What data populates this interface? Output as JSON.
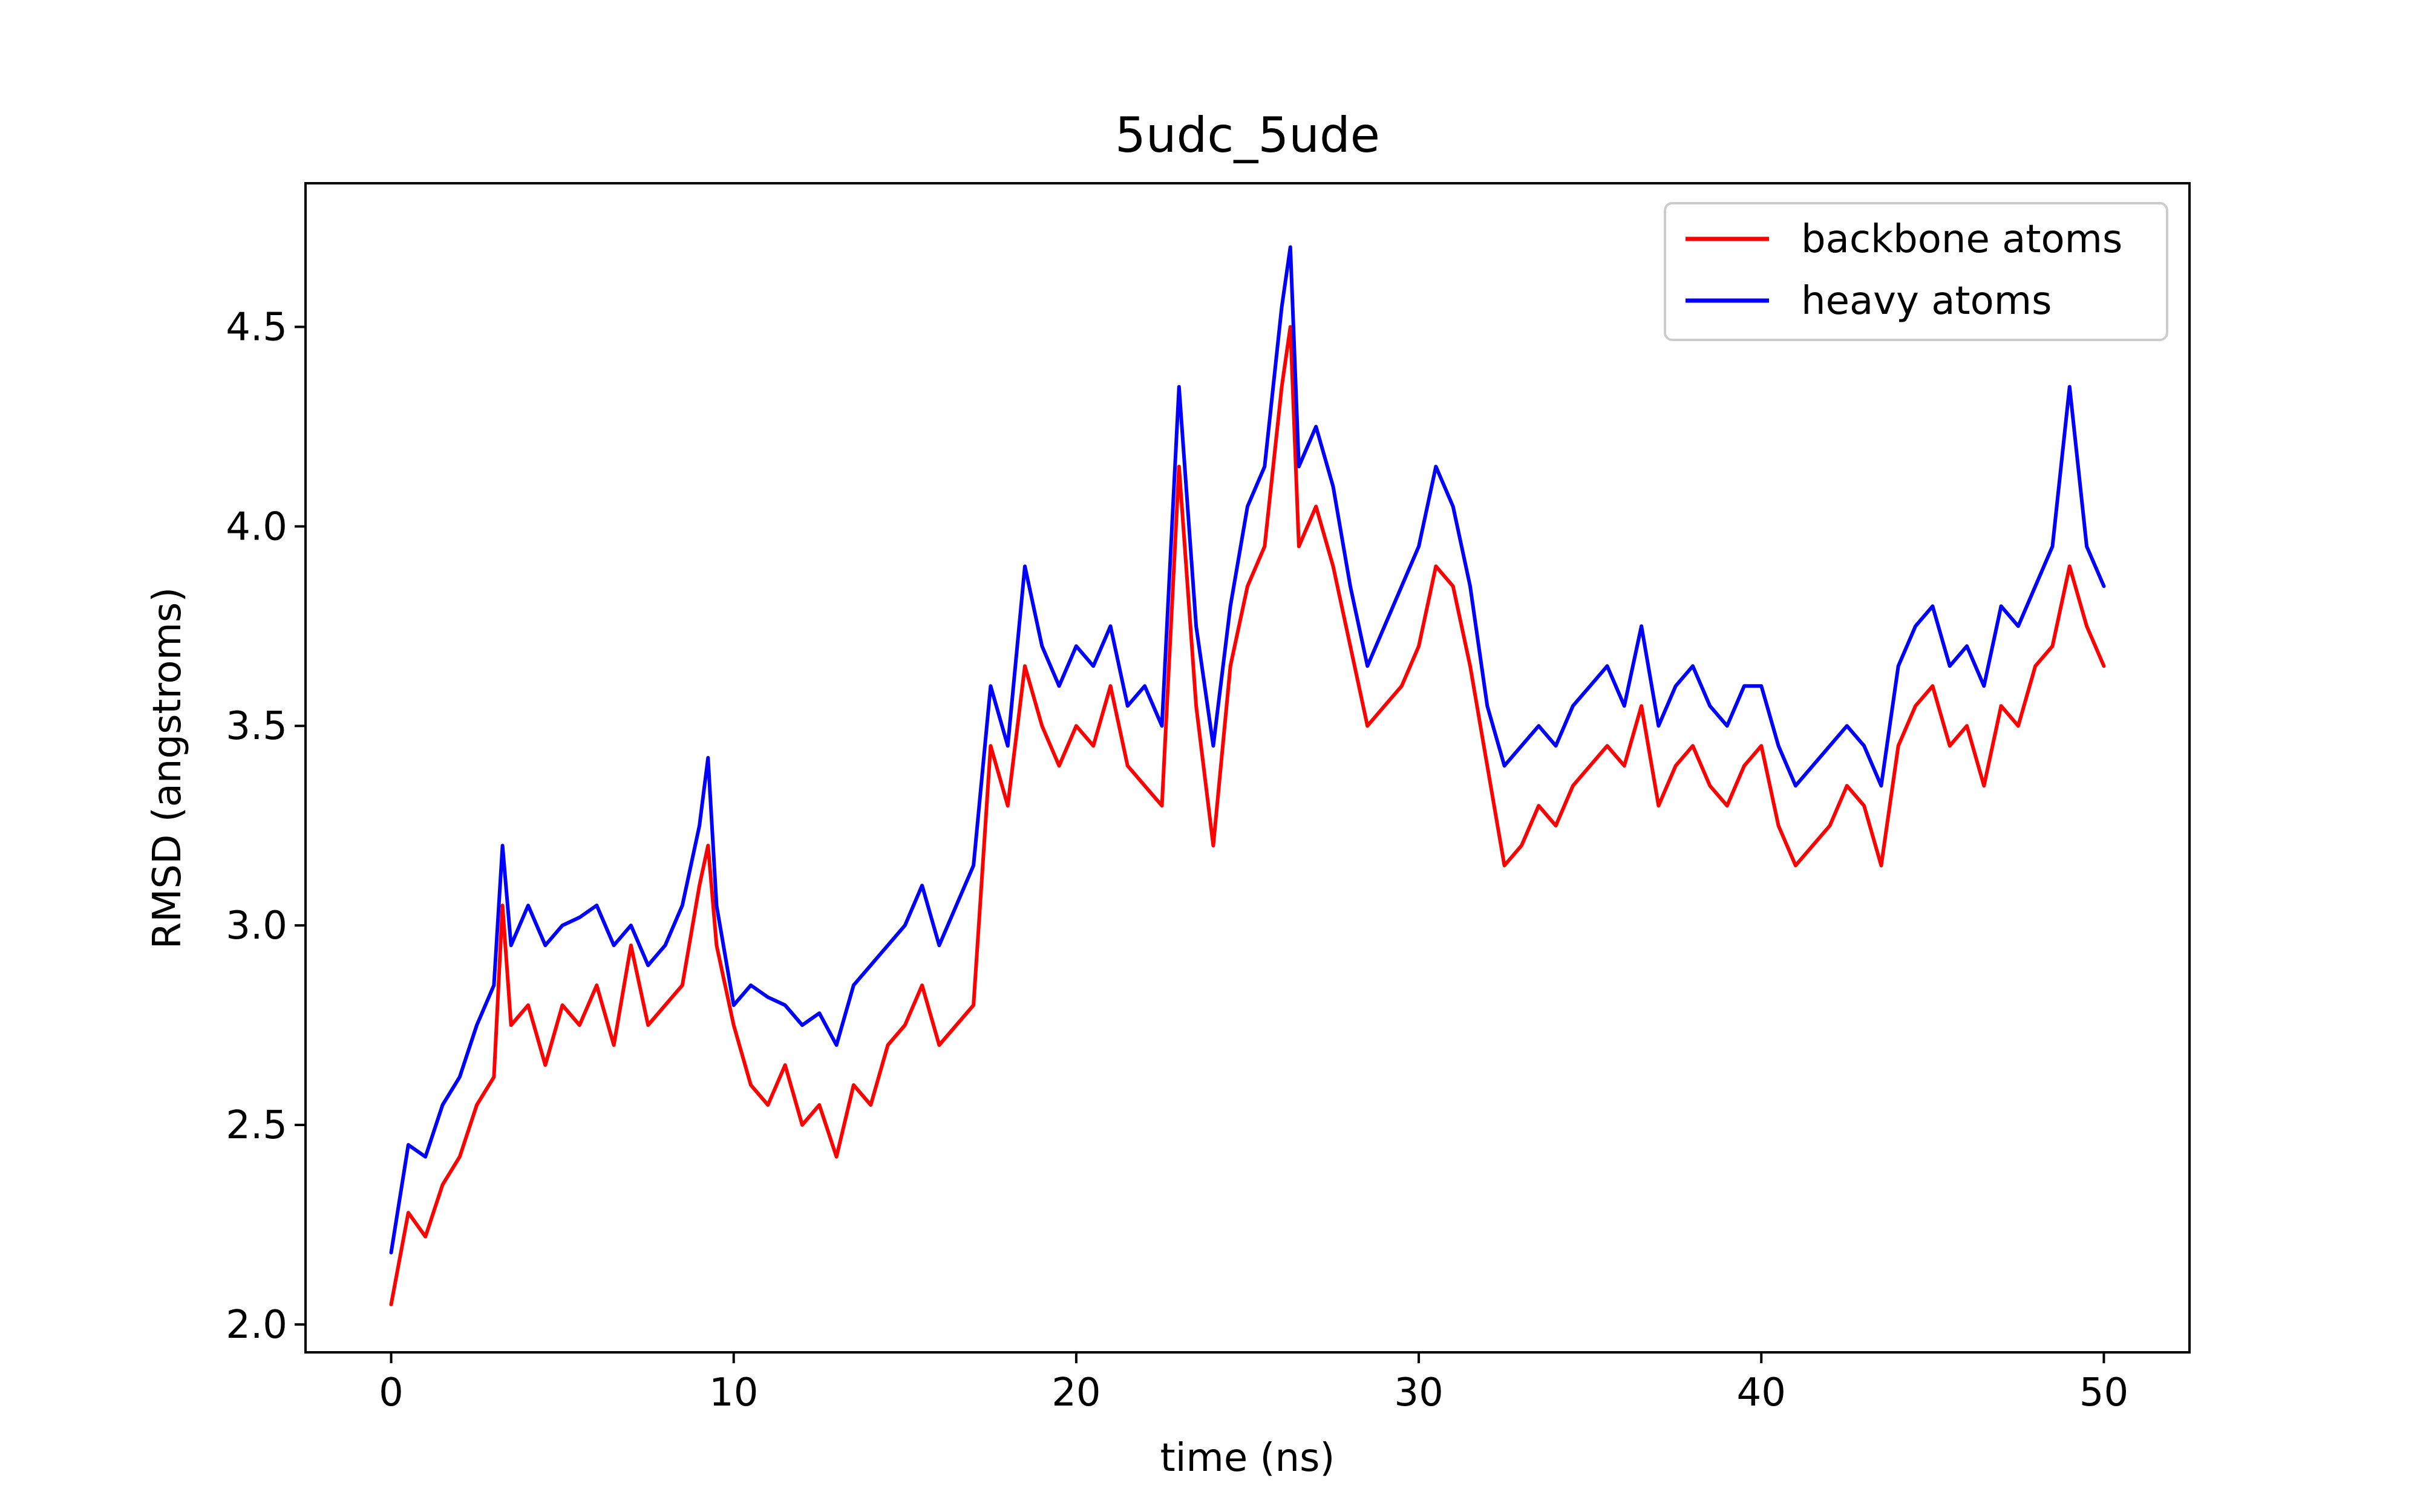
{
  "chart_data": {
    "type": "line",
    "title": "5udc_5ude",
    "xlabel": "time (ns)",
    "ylabel": "RMSD (angstroms)",
    "xlim": [
      -2.5,
      52.5
    ],
    "ylim": [
      1.93,
      4.86
    ],
    "x_ticks": [
      0,
      10,
      20,
      30,
      40,
      50
    ],
    "x_tick_labels": [
      "0",
      "10",
      "20",
      "30",
      "40",
      "50"
    ],
    "y_ticks": [
      2.0,
      2.5,
      3.0,
      3.5,
      4.0,
      4.5
    ],
    "y_tick_labels": [
      "2.0",
      "2.5",
      "3.0",
      "3.5",
      "4.0",
      "4.5"
    ],
    "grid": false,
    "legend_position": "top-right",
    "series": [
      {
        "name": "backbone atoms",
        "color": "#ff0000",
        "x": [
          0,
          0.5,
          1,
          1.5,
          2,
          2.5,
          3,
          3.25,
          3.5,
          4,
          4.5,
          5,
          5.5,
          6,
          6.5,
          7,
          7.5,
          8,
          8.5,
          9,
          9.25,
          9.5,
          10,
          10.5,
          11,
          11.5,
          12,
          12.5,
          13,
          13.5,
          14,
          14.5,
          15,
          15.5,
          16,
          16.5,
          17,
          17.5,
          18,
          18.5,
          19,
          19.5,
          20,
          20.5,
          21,
          21.5,
          22,
          22.5,
          23,
          23.5,
          24,
          24.5,
          25,
          25.5,
          26,
          26.25,
          26.5,
          27,
          27.5,
          28,
          28.5,
          29,
          29.5,
          30,
          30.5,
          31,
          31.5,
          32,
          32.5,
          33,
          33.5,
          34,
          34.5,
          35,
          35.5,
          36,
          36.5,
          37,
          37.5,
          38,
          38.5,
          39,
          39.5,
          40,
          40.5,
          41,
          41.5,
          42,
          42.5,
          43,
          43.5,
          44,
          44.5,
          45,
          45.5,
          46,
          46.5,
          47,
          47.5,
          48,
          48.5,
          49,
          49.5,
          50
        ],
        "y": [
          2.05,
          2.28,
          2.22,
          2.35,
          2.42,
          2.55,
          2.62,
          3.05,
          2.75,
          2.8,
          2.65,
          2.8,
          2.75,
          2.85,
          2.7,
          2.95,
          2.75,
          2.8,
          2.85,
          3.1,
          3.2,
          2.95,
          2.75,
          2.6,
          2.55,
          2.65,
          2.5,
          2.55,
          2.42,
          2.6,
          2.55,
          2.7,
          2.75,
          2.85,
          2.7,
          2.75,
          2.8,
          3.45,
          3.3,
          3.65,
          3.5,
          3.4,
          3.5,
          3.45,
          3.6,
          3.4,
          3.35,
          3.3,
          4.15,
          3.55,
          3.2,
          3.65,
          3.85,
          3.95,
          4.35,
          4.5,
          3.95,
          4.05,
          3.9,
          3.7,
          3.5,
          3.55,
          3.6,
          3.7,
          3.9,
          3.85,
          3.65,
          3.4,
          3.15,
          3.2,
          3.3,
          3.25,
          3.35,
          3.4,
          3.45,
          3.4,
          3.55,
          3.3,
          3.4,
          3.45,
          3.35,
          3.3,
          3.4,
          3.45,
          3.25,
          3.15,
          3.2,
          3.25,
          3.35,
          3.3,
          3.15,
          3.45,
          3.55,
          3.6,
          3.45,
          3.5,
          3.35,
          3.55,
          3.5,
          3.65,
          3.7,
          3.9,
          3.75,
          3.65
        ]
      },
      {
        "name": "heavy atoms",
        "color": "#0000ff",
        "x": [
          0,
          0.5,
          1,
          1.5,
          2,
          2.5,
          3,
          3.25,
          3.5,
          4,
          4.5,
          5,
          5.5,
          6,
          6.5,
          7,
          7.5,
          8,
          8.5,
          9,
          9.25,
          9.5,
          10,
          10.5,
          11,
          11.5,
          12,
          12.5,
          13,
          13.5,
          14,
          14.5,
          15,
          15.5,
          16,
          16.5,
          17,
          17.5,
          18,
          18.5,
          19,
          19.5,
          20,
          20.5,
          21,
          21.5,
          22,
          22.5,
          23,
          23.5,
          24,
          24.5,
          25,
          25.5,
          26,
          26.25,
          26.5,
          27,
          27.5,
          28,
          28.5,
          29,
          29.5,
          30,
          30.5,
          31,
          31.5,
          32,
          32.5,
          33,
          33.5,
          34,
          34.5,
          35,
          35.5,
          36,
          36.5,
          37,
          37.5,
          38,
          38.5,
          39,
          39.5,
          40,
          40.5,
          41,
          41.5,
          42,
          42.5,
          43,
          43.5,
          44,
          44.5,
          45,
          45.5,
          46,
          46.5,
          47,
          47.5,
          48,
          48.5,
          49,
          49.5,
          50
        ],
        "y": [
          2.18,
          2.45,
          2.42,
          2.55,
          2.62,
          2.75,
          2.85,
          3.2,
          2.95,
          3.05,
          2.95,
          3.0,
          3.02,
          3.05,
          2.95,
          3.0,
          2.9,
          2.95,
          3.05,
          3.25,
          3.42,
          3.05,
          2.8,
          2.85,
          2.82,
          2.8,
          2.75,
          2.78,
          2.7,
          2.85,
          2.9,
          2.95,
          3.0,
          3.1,
          2.95,
          3.05,
          3.15,
          3.6,
          3.45,
          3.9,
          3.7,
          3.6,
          3.7,
          3.65,
          3.75,
          3.55,
          3.6,
          3.5,
          4.35,
          3.75,
          3.45,
          3.8,
          4.05,
          4.15,
          4.55,
          4.7,
          4.15,
          4.25,
          4.1,
          3.85,
          3.65,
          3.75,
          3.85,
          3.95,
          4.15,
          4.05,
          3.85,
          3.55,
          3.4,
          3.45,
          3.5,
          3.45,
          3.55,
          3.6,
          3.65,
          3.55,
          3.75,
          3.5,
          3.6,
          3.65,
          3.55,
          3.5,
          3.6,
          3.6,
          3.45,
          3.35,
          3.4,
          3.45,
          3.5,
          3.45,
          3.35,
          3.65,
          3.75,
          3.8,
          3.65,
          3.7,
          3.6,
          3.8,
          3.75,
          3.85,
          3.95,
          4.35,
          3.95,
          3.85
        ]
      }
    ]
  }
}
